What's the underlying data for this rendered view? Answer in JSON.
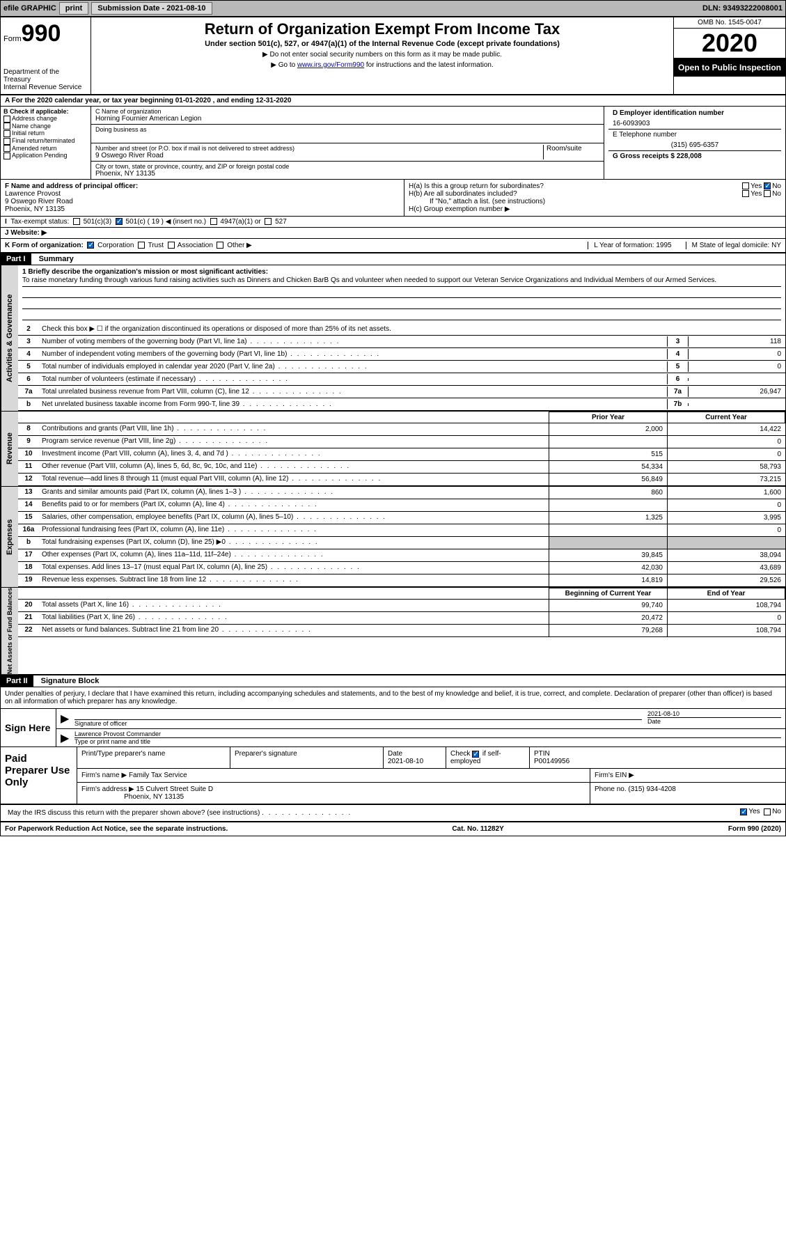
{
  "toolbar": {
    "efile": "efile GRAPHIC",
    "print": "print",
    "submission_label": "Submission Date - 2021-08-10",
    "dln": "DLN: 93493222008001"
  },
  "header": {
    "form_word": "Form",
    "form_num": "990",
    "title": "Return of Organization Exempt From Income Tax",
    "subtitle": "Under section 501(c), 527, or 4947(a)(1) of the Internal Revenue Code (except private foundations)",
    "note1": "▶ Do not enter social security numbers on this form as it may be made public.",
    "note2_pre": "▶ Go to ",
    "note2_link": "www.irs.gov/Form990",
    "note2_post": " for instructions and the latest information.",
    "dept": "Department of the Treasury\nInternal Revenue Service",
    "omb": "OMB No. 1545-0047",
    "year": "2020",
    "inspection": "Open to Public Inspection"
  },
  "row_a": "A For the 2020 calendar year, or tax year beginning 01-01-2020    , and ending 12-31-2020",
  "section_b": {
    "label": "B Check if applicable:",
    "opts": [
      "Address change",
      "Name change",
      "Initial return",
      "Final return/terminated",
      "Amended return",
      "Application Pending"
    ]
  },
  "section_c": {
    "name_label": "C Name of organization",
    "name": "Horning Fournier American Legion",
    "dba_label": "Doing business as",
    "addr_label": "Number and street (or P.O. box if mail is not delivered to street address)",
    "room_label": "Room/suite",
    "addr": "9 Oswego River Road",
    "city_label": "City or town, state or province, country, and ZIP or foreign postal code",
    "city": "Phoenix, NY  13135"
  },
  "section_d": {
    "ein_label": "D Employer identification number",
    "ein": "16-6093903",
    "phone_label": "E Telephone number",
    "phone": "(315) 695-6357",
    "gross_label": "G Gross receipts $ 228,008"
  },
  "section_f": {
    "label": "F  Name and address of principal officer:",
    "name": "Lawrence Provost",
    "addr1": "9 Oswego River Road",
    "addr2": "Phoenix, NY  13135"
  },
  "section_h": {
    "ha": "H(a)  Is this a group return for subordinates?",
    "hb": "H(b)  Are all subordinates included?",
    "hb_note": "If \"No,\" attach a list. (see instructions)",
    "hc": "H(c)  Group exemption number ▶",
    "yes": "Yes",
    "no": "No"
  },
  "tax_exempt": {
    "label": "Tax-exempt status:",
    "opt1": "501(c)(3)",
    "opt2": "501(c) ( 19 ) ◀ (insert no.)",
    "opt3": "4947(a)(1) or",
    "opt4": "527"
  },
  "website": "J    Website: ▶",
  "row_k": {
    "label": "K Form of organization:",
    "corp": "Corporation",
    "trust": "Trust",
    "assoc": "Association",
    "other": "Other ▶",
    "year": "L Year of formation: 1995",
    "state": "M State of legal domicile: NY"
  },
  "part1": {
    "header": "Part I",
    "title": "Summary",
    "line1": "1  Briefly describe the organization's mission or most significant activities:",
    "mission": "To raise monetary funding through various fund raising activities such as Dinners and Chicken BarB Qs and volunteer when needed to support our Veteran Service Organizations and Individual Members of our Armed Services.",
    "line2": "Check this box ▶ ☐  if the organization discontinued its operations or disposed of more than 25% of its net assets.",
    "sidebar1": "Activities & Governance",
    "sidebar2": "Revenue",
    "sidebar3": "Expenses",
    "sidebar4": "Net Assets or Fund Balances",
    "prior_header": "Prior Year",
    "current_header": "Current Year",
    "beg_header": "Beginning of Current Year",
    "end_header": "End of Year",
    "lines_gov": [
      {
        "n": "3",
        "t": "Number of voting members of the governing body (Part VI, line 1a)",
        "box": "3",
        "v": "118"
      },
      {
        "n": "4",
        "t": "Number of independent voting members of the governing body (Part VI, line 1b)",
        "box": "4",
        "v": "0"
      },
      {
        "n": "5",
        "t": "Total number of individuals employed in calendar year 2020 (Part V, line 2a)",
        "box": "5",
        "v": "0"
      },
      {
        "n": "6",
        "t": "Total number of volunteers (estimate if necessary)",
        "box": "6",
        "v": ""
      },
      {
        "n": "7a",
        "t": "Total unrelated business revenue from Part VIII, column (C), line 12",
        "box": "7a",
        "v": "26,947"
      },
      {
        "n": "b",
        "t": "Net unrelated business taxable income from Form 990-T, line 39",
        "box": "7b",
        "v": ""
      }
    ],
    "lines_rev": [
      {
        "n": "8",
        "t": "Contributions and grants (Part VIII, line 1h)",
        "p": "2,000",
        "c": "14,422"
      },
      {
        "n": "9",
        "t": "Program service revenue (Part VIII, line 2g)",
        "p": "",
        "c": "0"
      },
      {
        "n": "10",
        "t": "Investment income (Part VIII, column (A), lines 3, 4, and 7d )",
        "p": "515",
        "c": "0"
      },
      {
        "n": "11",
        "t": "Other revenue (Part VIII, column (A), lines 5, 6d, 8c, 9c, 10c, and 11e)",
        "p": "54,334",
        "c": "58,793"
      },
      {
        "n": "12",
        "t": "Total revenue—add lines 8 through 11 (must equal Part VIII, column (A), line 12)",
        "p": "56,849",
        "c": "73,215"
      }
    ],
    "lines_exp": [
      {
        "n": "13",
        "t": "Grants and similar amounts paid (Part IX, column (A), lines 1–3 )",
        "p": "860",
        "c": "1,600"
      },
      {
        "n": "14",
        "t": "Benefits paid to or for members (Part IX, column (A), line 4)",
        "p": "",
        "c": "0"
      },
      {
        "n": "15",
        "t": "Salaries, other compensation, employee benefits (Part IX, column (A), lines 5–10)",
        "p": "1,325",
        "c": "3,995"
      },
      {
        "n": "16a",
        "t": "Professional fundraising fees (Part IX, column (A), line 11e)",
        "p": "",
        "c": "0"
      },
      {
        "n": "b",
        "t": "Total fundraising expenses (Part IX, column (D), line 25) ▶0",
        "p": "grey",
        "c": "grey"
      },
      {
        "n": "17",
        "t": "Other expenses (Part IX, column (A), lines 11a–11d, 11f–24e)",
        "p": "39,845",
        "c": "38,094"
      },
      {
        "n": "18",
        "t": "Total expenses. Add lines 13–17 (must equal Part IX, column (A), line 25)",
        "p": "42,030",
        "c": "43,689"
      },
      {
        "n": "19",
        "t": "Revenue less expenses. Subtract line 18 from line 12",
        "p": "14,819",
        "c": "29,526"
      }
    ],
    "lines_net": [
      {
        "n": "20",
        "t": "Total assets (Part X, line 16)",
        "p": "99,740",
        "c": "108,794"
      },
      {
        "n": "21",
        "t": "Total liabilities (Part X, line 26)",
        "p": "20,472",
        "c": "0"
      },
      {
        "n": "22",
        "t": "Net assets or fund balances. Subtract line 21 from line 20",
        "p": "79,268",
        "c": "108,794"
      }
    ]
  },
  "part2": {
    "header": "Part II",
    "title": "Signature Block",
    "declare": "Under penalties of perjury, I declare that I have examined this return, including accompanying schedules and statements, and to the best of my knowledge and belief, it is true, correct, and complete. Declaration of preparer (other than officer) is based on all information of which preparer has any knowledge.",
    "sign_here": "Sign Here",
    "sig_officer": "Signature of officer",
    "date_label": "Date",
    "sig_date": "2021-08-10",
    "type_name": "Type or print name and title",
    "officer_name": "Lawrence Provost Commander",
    "paid": "Paid Preparer Use Only",
    "preparer_name_h": "Print/Type preparer's name",
    "preparer_sig_h": "Preparer's signature",
    "prep_date": "2021-08-10",
    "check_self": "Check ☑ if self-employed",
    "ptin_label": "PTIN",
    "ptin": "P00149956",
    "firm_name_l": "Firm's name    ▶",
    "firm_name": "Family Tax Service",
    "firm_ein_l": "Firm's EIN ▶",
    "firm_addr_l": "Firm's address ▶",
    "firm_addr": "15 Culvert Street Suite D",
    "firm_city": "Phoenix, NY  13135",
    "firm_phone_l": "Phone no. (315) 934-4208",
    "discuss": "May the IRS discuss this return with the preparer shown above? (see instructions)",
    "yes": "Yes",
    "no": "No"
  },
  "footer": {
    "paperwork": "For Paperwork Reduction Act Notice, see the separate instructions.",
    "cat": "Cat. No. 11282Y",
    "form": "Form 990 (2020)"
  }
}
